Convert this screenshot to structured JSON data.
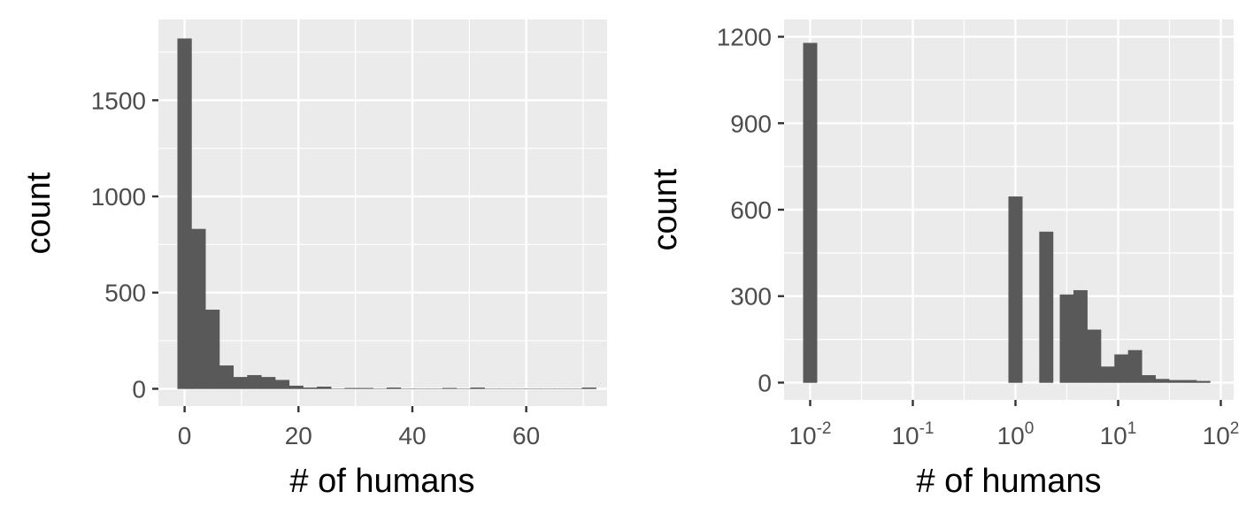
{
  "colors": {
    "panel_background": "#ebebeb",
    "grid_major": "#ffffff",
    "grid_minor": "#f7f7f7",
    "bar_fill": "#595959",
    "tick_text": "#4d4d4d",
    "axis_ticks": "#333333"
  },
  "chart_data": [
    {
      "type": "bar",
      "subtype": "histogram",
      "x_scale": "linear",
      "xlabel": "# of humans",
      "ylabel": "count",
      "xlim": [
        -4.6,
        74.2
      ],
      "ylim": [
        -90,
        1920
      ],
      "x_ticks": [
        {
          "value": 0,
          "label": "0"
        },
        {
          "value": 20,
          "label": "20"
        },
        {
          "value": 40,
          "label": "40"
        },
        {
          "value": 60,
          "label": "60"
        }
      ],
      "y_ticks": [
        {
          "value": 0,
          "label": "0"
        },
        {
          "value": 500,
          "label": "500"
        },
        {
          "value": 1000,
          "label": "1000"
        },
        {
          "value": 1500,
          "label": "1500"
        }
      ],
      "grid": true,
      "bin_width": 2.45,
      "bin_centers": [
        0,
        2.45,
        4.9,
        7.35,
        9.8,
        12.25,
        14.7,
        17.15,
        19.6,
        22.05,
        24.5,
        26.95,
        29.4,
        31.85,
        34.3,
        36.75,
        39.2,
        41.65,
        44.1,
        46.55,
        49,
        51.45,
        53.9,
        56.35,
        58.8,
        61.25,
        63.7,
        66.15,
        68.6,
        71.05
      ],
      "values": [
        1820,
        830,
        410,
        120,
        60,
        70,
        60,
        45,
        15,
        5,
        10,
        0,
        3,
        3,
        0,
        5,
        0,
        0,
        0,
        3,
        0,
        5,
        0,
        0,
        0,
        0,
        0,
        0,
        0,
        5
      ]
    },
    {
      "type": "bar",
      "subtype": "histogram",
      "x_scale": "log10",
      "xlabel": "# of humans",
      "ylabel": "count",
      "xlim_log10": [
        -2.254,
        2.125
      ],
      "ylim": [
        -60,
        1260
      ],
      "x_ticks": [
        {
          "value": 0.01,
          "base": "10",
          "exponent": "-2"
        },
        {
          "value": 0.1,
          "base": "10",
          "exponent": "-1"
        },
        {
          "value": 1,
          "base": "10",
          "exponent": "0"
        },
        {
          "value": 10,
          "base": "10",
          "exponent": "1"
        },
        {
          "value": 100,
          "base": "10",
          "exponent": "2"
        }
      ],
      "y_ticks": [
        {
          "value": 0,
          "label": "0"
        },
        {
          "value": 300,
          "label": "300"
        },
        {
          "value": 600,
          "label": "600"
        },
        {
          "value": 900,
          "label": "900"
        },
        {
          "value": 1200,
          "label": "1200"
        }
      ],
      "grid": true,
      "bin_width_log10": 0.133,
      "bin_centers_log10": [
        -2,
        0,
        0.3,
        0.5,
        0.633,
        0.766,
        0.899,
        1.032,
        1.165,
        1.298,
        1.431,
        1.564,
        1.697,
        1.83
      ],
      "values": [
        1178,
        645,
        523,
        305,
        320,
        183,
        55,
        97,
        112,
        25,
        12,
        8,
        8,
        5
      ]
    }
  ]
}
